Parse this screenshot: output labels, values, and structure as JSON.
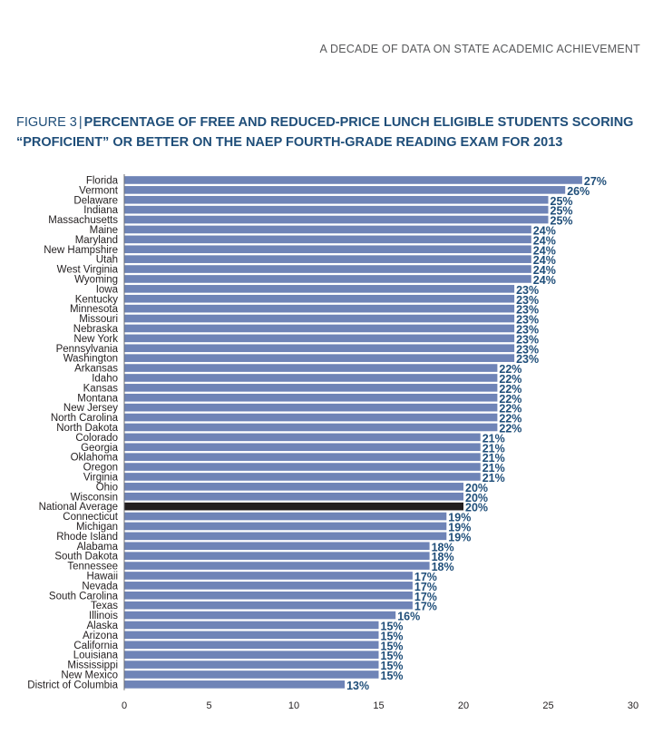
{
  "header": {
    "running_head": "A DECADE OF DATA ON STATE ACADEMIC ACHIEVEMENT"
  },
  "figure": {
    "label": "FIGURE 3",
    "separator": "|",
    "title": "PERCENTAGE OF FREE AND REDUCED-PRICE LUNCH ELIGIBLE STUDENTS SCORING “PROFICIENT” OR BETTER ON THE NAEP FOURTH-GRADE READING EXAM FOR 2013"
  },
  "colors": {
    "bar": "#6f84b7",
    "highlight": "#231f20",
    "label": "#1f4e79",
    "axis": "#6d6e71",
    "text": "#231f20"
  },
  "chart_data": {
    "type": "bar",
    "orientation": "horizontal",
    "title": "PERCENTAGE OF FREE AND REDUCED-PRICE LUNCH ELIGIBLE STUDENTS SCORING “PROFICIENT” OR BETTER ON THE NAEP FOURTH-GRADE READING EXAM FOR 2013",
    "xlabel": "",
    "ylabel": "",
    "xlim": [
      0,
      30
    ],
    "xticks": [
      0,
      5,
      10,
      15,
      20,
      25,
      30
    ],
    "value_suffix": "%",
    "highlight": "National Average",
    "categories": [
      "Florida",
      "Vermont",
      "Delaware",
      "Indiana",
      "Massachusetts",
      "Maine",
      "Maryland",
      "New Hampshire",
      "Utah",
      "West Virginia",
      "Wyoming",
      "Iowa",
      "Kentucky",
      "Minnesota",
      "Missouri",
      "Nebraska",
      "New York",
      "Pennsylvania",
      "Washington",
      "Arkansas",
      "Idaho",
      "Kansas",
      "Montana",
      "New Jersey",
      "North Carolina",
      "North Dakota",
      "Colorado",
      "Georgia",
      "Oklahoma",
      "Oregon",
      "Virginia",
      "Ohio",
      "Wisconsin",
      "National Average",
      "Connecticut",
      "Michigan",
      "Rhode Island",
      "Alabama",
      "South Dakota",
      "Tennessee",
      "Hawaii",
      "Nevada",
      "South Carolina",
      "Texas",
      "Illinois",
      "Alaska",
      "Arizona",
      "California",
      "Louisiana",
      "Mississippi",
      "New Mexico",
      "District of Columbia"
    ],
    "values": [
      27,
      26,
      25,
      25,
      25,
      24,
      24,
      24,
      24,
      24,
      24,
      23,
      23,
      23,
      23,
      23,
      23,
      23,
      23,
      22,
      22,
      22,
      22,
      22,
      22,
      22,
      21,
      21,
      21,
      21,
      21,
      20,
      20,
      20,
      19,
      19,
      19,
      18,
      18,
      18,
      17,
      17,
      17,
      17,
      16,
      15,
      15,
      15,
      15,
      15,
      15,
      13
    ]
  }
}
